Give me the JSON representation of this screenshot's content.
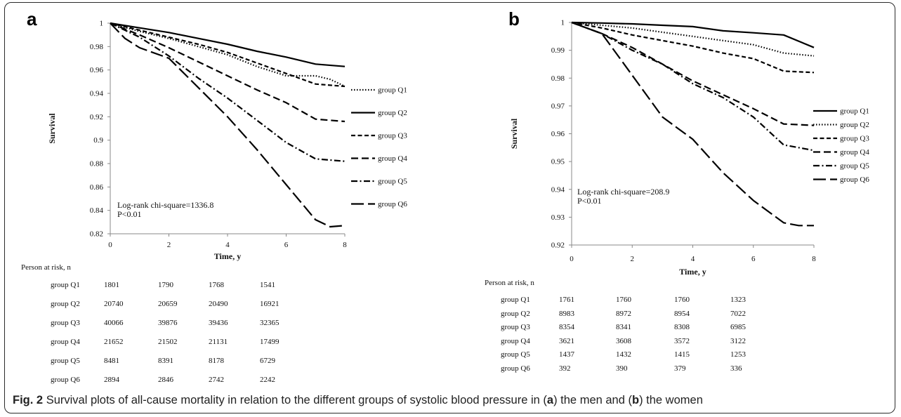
{
  "caption": {
    "label": "Fig. 2",
    "text": "Survival plots of all-cause mortality in relation to the different groups of systolic blood pressure in (",
    "a": "a",
    "mid": ") the men and (",
    "b": "b",
    "end": ") the women"
  },
  "chart_data": [
    {
      "type": "line",
      "panel": "a",
      "xlabel": "Time, y",
      "ylabel": "Survival",
      "xlim": [
        0,
        8
      ],
      "ylim": [
        0.82,
        1
      ],
      "xticks": [
        "0",
        "2",
        "4",
        "6",
        "8"
      ],
      "yticks": [
        "0.82",
        "0.84",
        "0.86",
        "0.88",
        "0.9",
        "0.92",
        "0.94",
        "0.96",
        "0.98",
        "1"
      ],
      "legend_position": "right",
      "annotation": [
        "Log-rank chi-square=1336.8",
        "P<0.01"
      ],
      "series": [
        {
          "name": "group Q1",
          "style": "dotted",
          "x": [
            0,
            1,
            2,
            3,
            4,
            5,
            6,
            7,
            7.5,
            8
          ],
          "y": [
            1,
            0.993,
            0.987,
            0.98,
            0.973,
            0.963,
            0.955,
            0.955,
            0.952,
            0.946
          ]
        },
        {
          "name": "group Q2",
          "style": "solid",
          "x": [
            0,
            1,
            2,
            3,
            4,
            5,
            6,
            7,
            8
          ],
          "y": [
            1,
            0.996,
            0.992,
            0.987,
            0.982,
            0.976,
            0.971,
            0.965,
            0.963
          ]
        },
        {
          "name": "group Q3",
          "style": "short-dash",
          "x": [
            0,
            1,
            2,
            3,
            4,
            5,
            6,
            7,
            8
          ],
          "y": [
            1,
            0.994,
            0.988,
            0.982,
            0.975,
            0.966,
            0.957,
            0.948,
            0.946
          ]
        },
        {
          "name": "group Q4",
          "style": "long-dash",
          "x": [
            0,
            1,
            2,
            3,
            4,
            5,
            6,
            7,
            8
          ],
          "y": [
            1,
            0.99,
            0.979,
            0.967,
            0.955,
            0.943,
            0.932,
            0.918,
            0.916
          ]
        },
        {
          "name": "group Q5",
          "style": "dash-dot",
          "x": [
            0,
            1,
            2,
            3,
            4,
            5,
            6,
            7,
            8
          ],
          "y": [
            1,
            0.988,
            0.972,
            0.953,
            0.936,
            0.917,
            0.898,
            0.884,
            0.882
          ]
        },
        {
          "name": "group Q6",
          "style": "very-long-dash",
          "x": [
            0,
            0.5,
            1,
            2,
            3,
            4,
            5,
            6,
            7,
            7.5,
            8
          ],
          "y": [
            1,
            0.987,
            0.979,
            0.97,
            0.945,
            0.92,
            0.892,
            0.862,
            0.832,
            0.826,
            0.827
          ]
        }
      ],
      "at_risk": {
        "title": "Person at risk, n",
        "rows": [
          {
            "group": "group Q1",
            "values": [
              "1801",
              "1790",
              "1768",
              "1541"
            ]
          },
          {
            "group": "group Q2",
            "values": [
              "20740",
              "20659",
              "20490",
              "16921"
            ]
          },
          {
            "group": "group Q3",
            "values": [
              "40066",
              "39876",
              "39436",
              "32365"
            ]
          },
          {
            "group": "group Q4",
            "values": [
              "21652",
              "21502",
              "21131",
              "17499"
            ]
          },
          {
            "group": "group Q5",
            "values": [
              "8481",
              "8391",
              "8178",
              "6729"
            ]
          },
          {
            "group": "group Q6",
            "values": [
              "2894",
              "2846",
              "2742",
              "2242"
            ]
          }
        ]
      }
    },
    {
      "type": "line",
      "panel": "b",
      "xlabel": "Time, y",
      "ylabel": "Survival",
      "xlim": [
        0,
        8
      ],
      "ylim": [
        0.92,
        1
      ],
      "xticks": [
        "0",
        "2",
        "4",
        "6",
        "8"
      ],
      "yticks": [
        "0.92",
        "0.93",
        "0.94",
        "0.95",
        "0.96",
        "0.97",
        "0.98",
        "0.99",
        "1"
      ],
      "legend_position": "right",
      "annotation": [
        "Log-rank chi-square=208.9",
        "P<0.01"
      ],
      "series": [
        {
          "name": "group Q1",
          "style": "solid",
          "x": [
            0,
            1,
            2,
            3,
            4,
            5,
            6,
            7,
            8
          ],
          "y": [
            1,
            0.9998,
            0.9995,
            0.999,
            0.9985,
            0.997,
            0.9963,
            0.9955,
            0.991
          ]
        },
        {
          "name": "group Q2",
          "style": "dotted",
          "x": [
            0,
            1,
            2,
            3,
            4,
            5,
            6,
            7,
            8
          ],
          "y": [
            1,
            0.999,
            0.998,
            0.9965,
            0.995,
            0.9935,
            0.992,
            0.989,
            0.988
          ]
        },
        {
          "name": "group Q3",
          "style": "short-dash",
          "x": [
            0,
            1,
            2,
            3,
            4,
            5,
            6,
            7,
            8
          ],
          "y": [
            1,
            0.998,
            0.9955,
            0.9935,
            0.9915,
            0.989,
            0.987,
            0.9825,
            0.982
          ]
        },
        {
          "name": "group Q4",
          "style": "long-dash",
          "x": [
            0,
            1,
            2,
            3,
            4,
            5,
            6,
            7,
            8
          ],
          "y": [
            1,
            0.996,
            0.991,
            0.985,
            0.979,
            0.974,
            0.969,
            0.9635,
            0.963
          ]
        },
        {
          "name": "group Q5",
          "style": "dash-dot",
          "x": [
            0,
            1,
            2,
            3,
            4,
            5,
            6,
            7,
            8
          ],
          "y": [
            1,
            0.996,
            0.99,
            0.985,
            0.978,
            0.973,
            0.966,
            0.956,
            0.954
          ]
        },
        {
          "name": "group Q6",
          "style": "very-long-dash",
          "x": [
            0,
            1,
            2,
            3,
            3.5,
            4,
            5,
            6,
            7,
            7.5,
            8
          ],
          "y": [
            1,
            0.996,
            0.981,
            0.966,
            0.962,
            0.958,
            0.946,
            0.936,
            0.928,
            0.927,
            0.927
          ]
        }
      ],
      "at_risk": {
        "title": "Person at risk, n",
        "rows": [
          {
            "group": "group Q1",
            "values": [
              "1761",
              "1760",
              "1760",
              "1323"
            ]
          },
          {
            "group": "group Q2",
            "values": [
              "8983",
              "8972",
              "8954",
              "7022"
            ]
          },
          {
            "group": "group Q3",
            "values": [
              "8354",
              "8341",
              "8308",
              "6985"
            ]
          },
          {
            "group": "group Q4",
            "values": [
              "3621",
              "3608",
              "3572",
              "3122"
            ]
          },
          {
            "group": "group Q5",
            "values": [
              "1437",
              "1432",
              "1415",
              "1253"
            ]
          },
          {
            "group": "group Q6",
            "values": [
              "392",
              "390",
              "379",
              "336"
            ]
          }
        ]
      }
    }
  ]
}
